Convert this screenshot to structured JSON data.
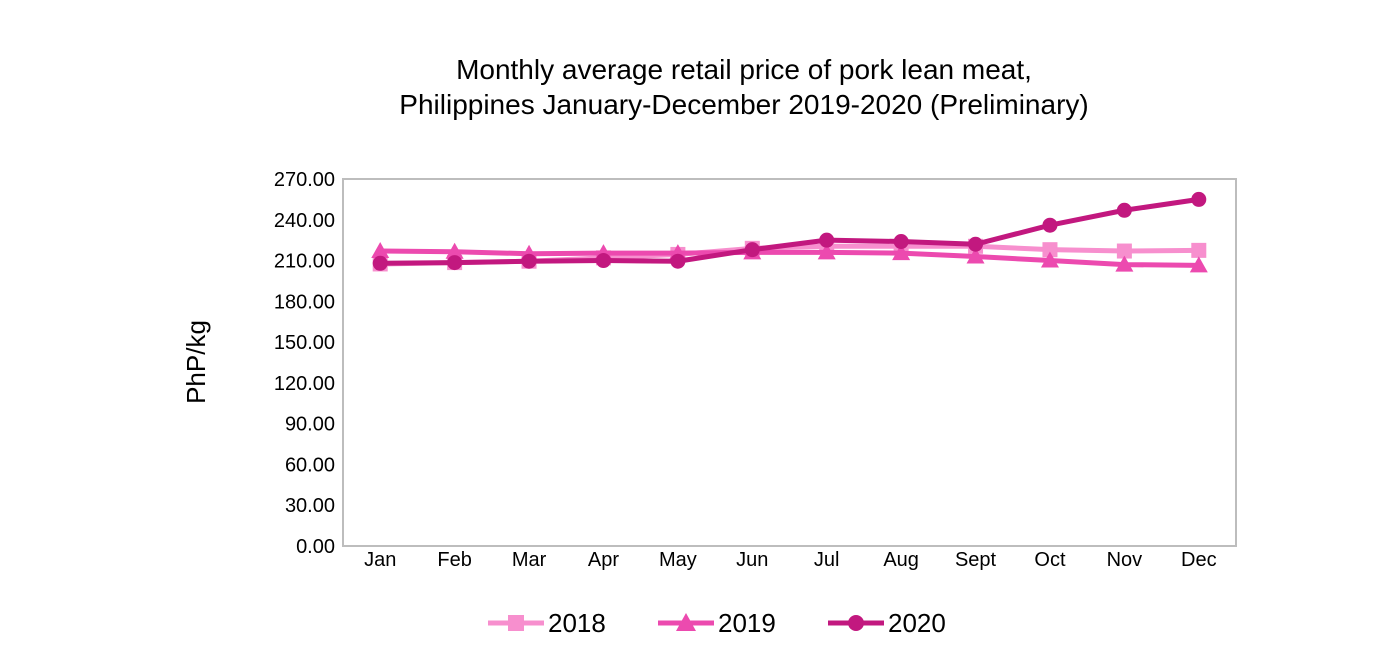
{
  "chart_data": {
    "type": "line",
    "title_line1": "Monthly average retail price of pork lean meat,",
    "title_line2": "Philippines January-December 2019-2020 (Preliminary)",
    "xlabel": "",
    "ylabel": "PhP/kg",
    "ylim": [
      0,
      270
    ],
    "yticks": [
      "0.00",
      "30.00",
      "60.00",
      "90.00",
      "120.00",
      "150.00",
      "180.00",
      "210.00",
      "240.00",
      "270.00"
    ],
    "categories": [
      "Jan",
      "Feb",
      "Mar",
      "Apr",
      "May",
      "Jun",
      "Jul",
      "Aug",
      "Sept",
      "Oct",
      "Nov",
      "Dec"
    ],
    "grid": false,
    "legend_position": "bottom",
    "series": [
      {
        "name": "2018",
        "color": "#f78fce",
        "marker": "square",
        "values": [
          207.5,
          208.5,
          209.5,
          212.0,
          214.5,
          219.0,
          220.5,
          220.5,
          220.5,
          218.0,
          217.0,
          217.5
        ]
      },
      {
        "name": "2019",
        "color": "#ec4aaf",
        "marker": "triangle",
        "values": [
          217.0,
          216.5,
          215.0,
          215.5,
          215.5,
          216.0,
          216.0,
          215.5,
          213.0,
          210.0,
          207.0,
          206.5
        ]
      },
      {
        "name": "2020",
        "color": "#c2187f",
        "marker": "circle",
        "values": [
          208.0,
          208.5,
          209.5,
          210.0,
          209.5,
          218.0,
          225.0,
          224.0,
          222.0,
          236.0,
          247.0,
          255.0
        ]
      }
    ]
  }
}
